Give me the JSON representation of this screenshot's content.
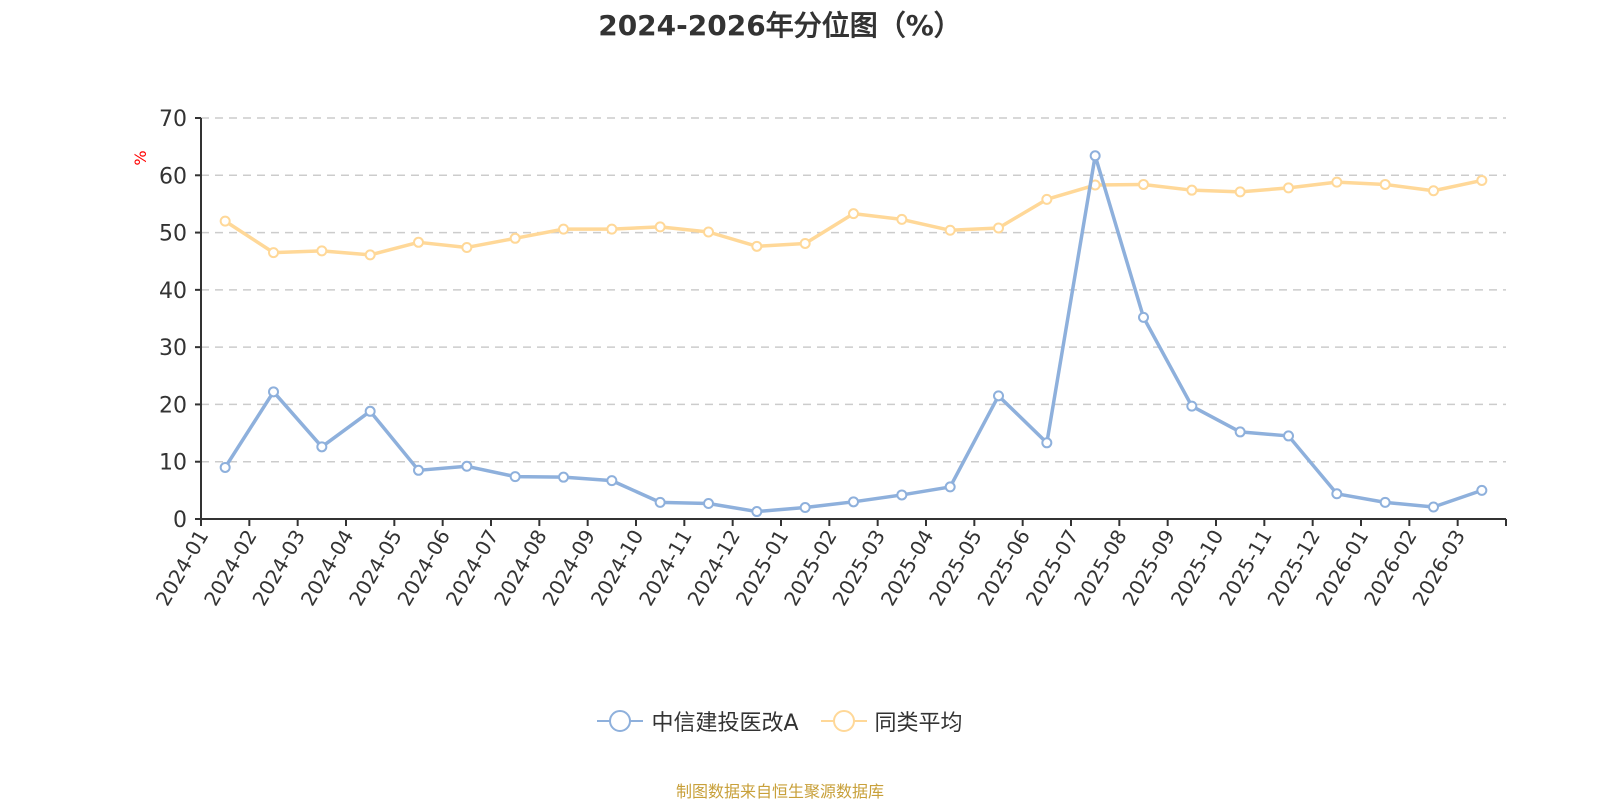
{
  "title": "2024-2026年分位图（%）",
  "y_unit_label": "%",
  "source_note": "制图数据来自恒生聚源数据库",
  "legend": [
    {
      "label": "中信建投医改A",
      "color": "#8eb0dc"
    },
    {
      "label": "同类平均",
      "color": "#ffd898"
    }
  ],
  "colors": {
    "series_a": "#8eb0dc",
    "series_b": "#ffd898",
    "axis": "#333333",
    "grid": "#cccccc",
    "unit_label": "#ff0000",
    "source": "#c8a03a"
  },
  "chart_data": {
    "type": "line",
    "title": "2024-2026年分位图（%）",
    "xlabel": "",
    "ylabel": "%",
    "ylim": [
      0,
      70
    ],
    "yticks": [
      0,
      10,
      20,
      30,
      40,
      50,
      60,
      70
    ],
    "grid": true,
    "legend_position": "bottom",
    "categories": [
      "2024-01",
      "2024-02",
      "2024-03",
      "2024-04",
      "2024-05",
      "2024-06",
      "2024-07",
      "2024-08",
      "2024-09",
      "2024-10",
      "2024-11",
      "2024-12",
      "2025-01",
      "2025-02",
      "2025-03",
      "2025-04",
      "2025-05",
      "2025-06",
      "2025-07",
      "2025-08",
      "2025-09",
      "2025-10",
      "2025-11",
      "2025-12",
      "2026-01",
      "2026-02",
      "2026-03"
    ],
    "series": [
      {
        "name": "中信建投医改A",
        "color": "#8eb0dc",
        "values": [
          9.0,
          22.2,
          12.6,
          18.8,
          8.5,
          9.2,
          7.4,
          7.3,
          6.7,
          2.9,
          2.7,
          1.3,
          2.0,
          3.0,
          4.2,
          5.6,
          21.5,
          13.3,
          63.4,
          35.2,
          19.7,
          15.2,
          14.5,
          4.4,
          2.9,
          2.1,
          5.0
        ]
      },
      {
        "name": "同类平均",
        "color": "#ffd898",
        "values": [
          52.0,
          46.5,
          46.8,
          46.1,
          48.3,
          47.4,
          49.0,
          50.6,
          50.6,
          51.0,
          50.1,
          47.6,
          48.1,
          53.3,
          52.3,
          50.4,
          50.8,
          55.8,
          58.3,
          58.4,
          57.4,
          57.1,
          57.8,
          58.8,
          58.4,
          57.3,
          59.1
        ]
      }
    ]
  }
}
